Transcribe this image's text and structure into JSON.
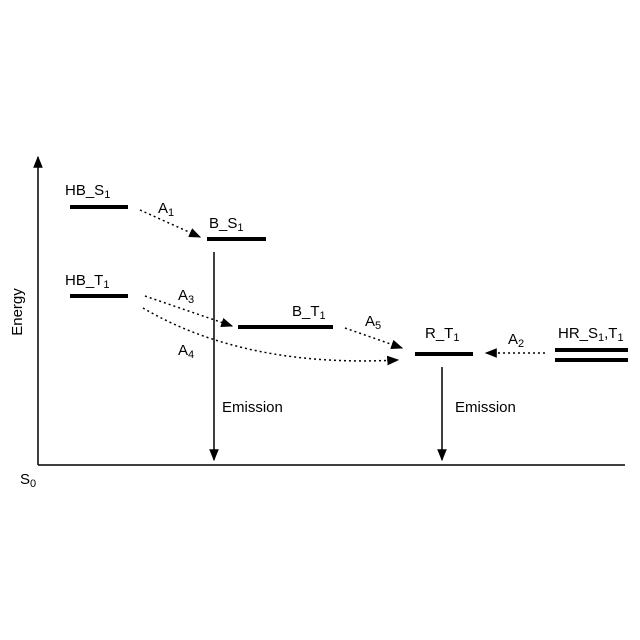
{
  "axis": {
    "label": "Energy",
    "origin": [
      "S",
      "0"
    ]
  },
  "levels": [
    {
      "label": [
        "HB_S",
        "1"
      ]
    },
    {
      "label": [
        "B_S",
        "1"
      ]
    },
    {
      "label": [
        "HB_T",
        "1"
      ]
    },
    {
      "label": [
        "B_T",
        "1"
      ]
    },
    {
      "label": [
        "R_T",
        "1"
      ]
    },
    {
      "label": [
        "HR_S",
        "1",
        ",T",
        "1"
      ]
    }
  ],
  "transitions": [
    {
      "label": [
        "A",
        "1"
      ]
    },
    {
      "label": [
        "A",
        "3"
      ]
    },
    {
      "label": [
        "A",
        "4"
      ]
    },
    {
      "label": [
        "A",
        "5"
      ]
    },
    {
      "label": [
        "A",
        "2"
      ]
    }
  ],
  "emissions": [
    {
      "label": "Emission"
    },
    {
      "label": "Emission"
    }
  ]
}
